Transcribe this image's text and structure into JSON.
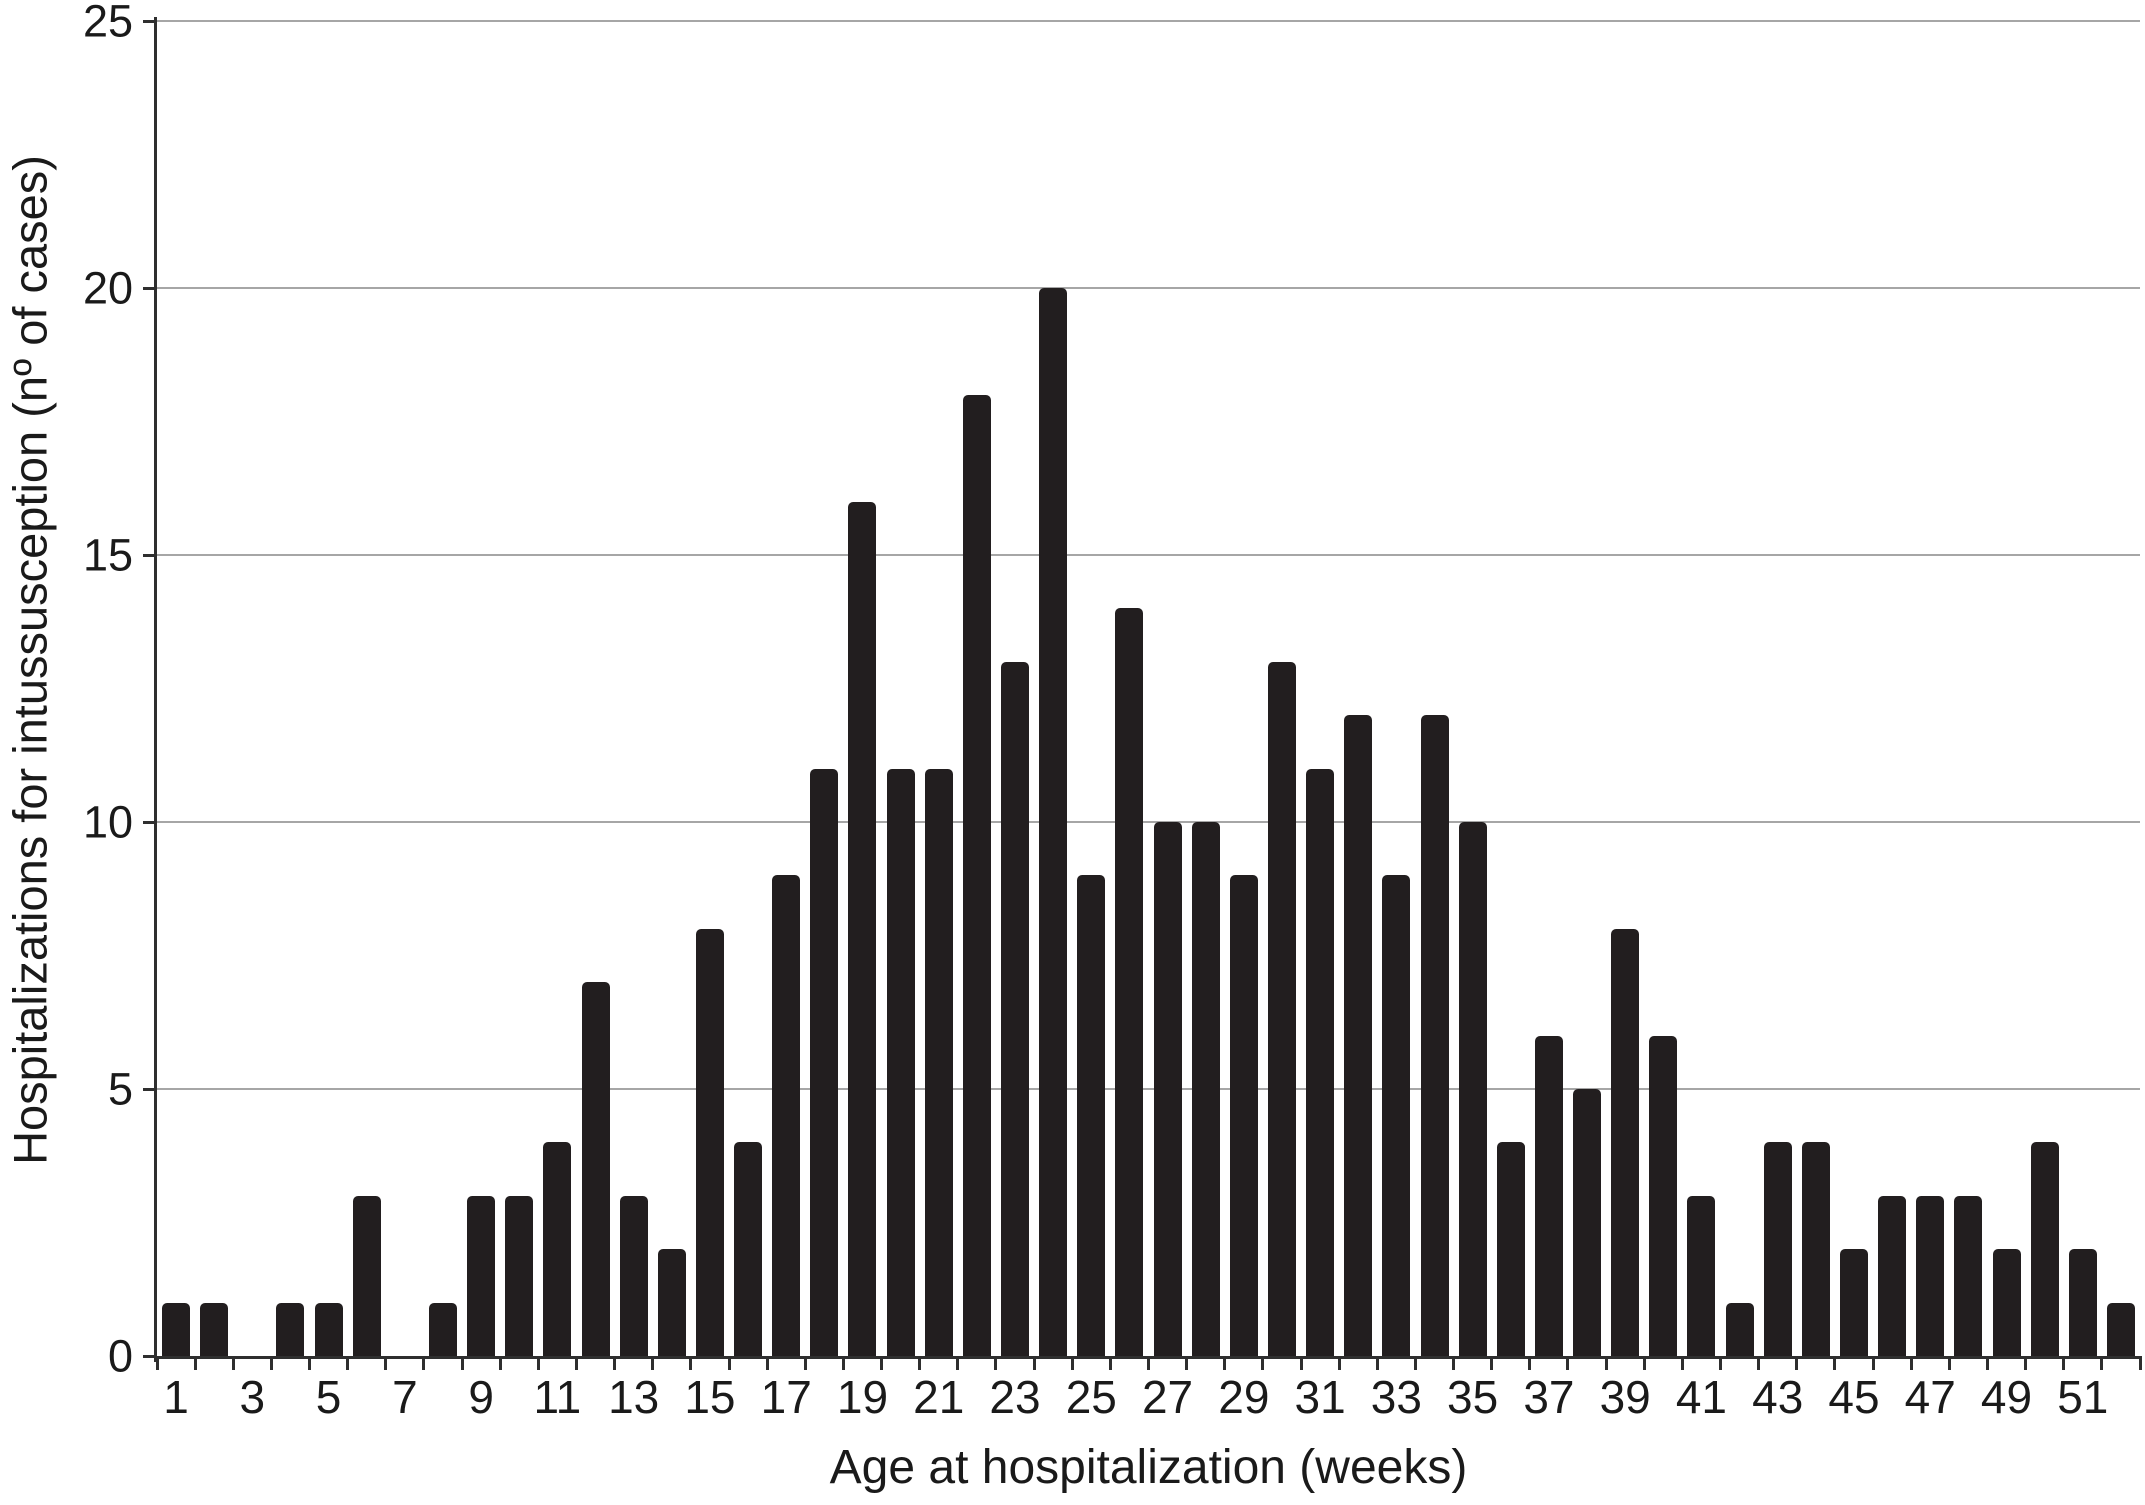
{
  "chart_data": {
    "type": "bar",
    "title": "",
    "xlabel": "Age at hospitalization (weeks)",
    "ylabel": "Hospitalizations for intussusception (nº of cases)",
    "weeks": [
      1,
      2,
      3,
      4,
      5,
      6,
      7,
      8,
      9,
      10,
      11,
      12,
      13,
      14,
      15,
      16,
      17,
      18,
      19,
      20,
      21,
      22,
      23,
      24,
      25,
      26,
      27,
      28,
      29,
      30,
      31,
      32,
      33,
      34,
      35,
      36,
      37,
      38,
      39,
      40,
      41,
      42,
      43,
      44,
      45,
      46,
      47,
      48,
      49,
      50,
      51,
      52
    ],
    "values": [
      1,
      1,
      0,
      1,
      1,
      3,
      0,
      1,
      3,
      3,
      4,
      7,
      3,
      2,
      8,
      4,
      9,
      11,
      16,
      11,
      11,
      18,
      13,
      20,
      9,
      14,
      10,
      10,
      9,
      13,
      11,
      12,
      9,
      12,
      10,
      4,
      6,
      5,
      8,
      6,
      3,
      1,
      4,
      4,
      2,
      3,
      3,
      3,
      2,
      4,
      2,
      1
    ],
    "ylim": [
      0,
      25
    ],
    "yticks": [
      0,
      5,
      10,
      15,
      20,
      25
    ],
    "ytick_labels": [
      "0",
      "5",
      "10",
      "15",
      "20",
      "25"
    ],
    "xtick_labels": [
      "1",
      "3",
      "5",
      "7",
      "9",
      "11",
      "13",
      "15",
      "17",
      "19",
      "21",
      "23",
      "25",
      "27",
      "29",
      "31",
      "33",
      "35",
      "37",
      "39",
      "41",
      "43",
      "45",
      "47",
      "49",
      "51"
    ],
    "xtick_label_weeks": [
      1,
      3,
      5,
      7,
      9,
      11,
      13,
      15,
      17,
      19,
      21,
      23,
      25,
      27,
      29,
      31,
      33,
      35,
      37,
      39,
      41,
      43,
      45,
      47,
      49,
      51
    ],
    "legend": "none",
    "grid": "horizontal",
    "bar_color": "#221e1f",
    "gridline_color": "#a6a6a6",
    "axis_color": "#2f2f2f",
    "text_color": "#1a1a1a",
    "background_color": "#ffffff"
  }
}
